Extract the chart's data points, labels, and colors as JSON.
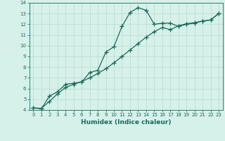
{
  "xlabel": "Humidex (Indice chaleur)",
  "xlim": [
    -0.5,
    23.5
  ],
  "ylim": [
    4,
    14
  ],
  "xticks": [
    0,
    1,
    2,
    3,
    4,
    5,
    6,
    7,
    8,
    9,
    10,
    11,
    12,
    13,
    14,
    15,
    16,
    17,
    18,
    19,
    20,
    21,
    22,
    23
  ],
  "yticks": [
    4,
    5,
    6,
    7,
    8,
    9,
    10,
    11,
    12,
    13,
    14
  ],
  "bg_color": "#d6f0ea",
  "grid_color": "#b8d8ce",
  "line_color": "#1a6b5a",
  "line1_x": [
    0,
    1,
    2,
    3,
    4,
    5,
    6,
    7,
    8,
    9,
    10,
    11,
    12,
    13,
    14,
    15,
    16,
    17,
    18,
    19,
    20,
    21,
    22,
    23
  ],
  "line1_y": [
    4.2,
    4.1,
    5.3,
    5.7,
    6.4,
    6.5,
    6.6,
    7.5,
    7.7,
    9.4,
    9.9,
    11.8,
    13.1,
    13.55,
    13.3,
    12.0,
    12.1,
    12.1,
    11.8,
    12.0,
    12.1,
    12.3,
    12.4,
    13.0
  ],
  "line2_x": [
    0,
    1,
    2,
    3,
    4,
    5,
    6,
    7,
    8,
    9,
    10,
    11,
    12,
    13,
    14,
    15,
    16,
    17,
    18,
    19,
    20,
    21,
    22,
    23
  ],
  "line2_y": [
    4.2,
    4.15,
    4.8,
    5.5,
    6.1,
    6.4,
    6.65,
    7.0,
    7.4,
    7.85,
    8.4,
    9.0,
    9.6,
    10.2,
    10.8,
    11.3,
    11.7,
    11.5,
    11.85,
    12.05,
    12.15,
    12.3,
    12.4,
    13.0
  ],
  "marker": "+",
  "markersize": 4,
  "markeredgewidth": 0.9,
  "linewidth": 0.9,
  "tick_fontsize": 5,
  "xlabel_fontsize": 6.5
}
